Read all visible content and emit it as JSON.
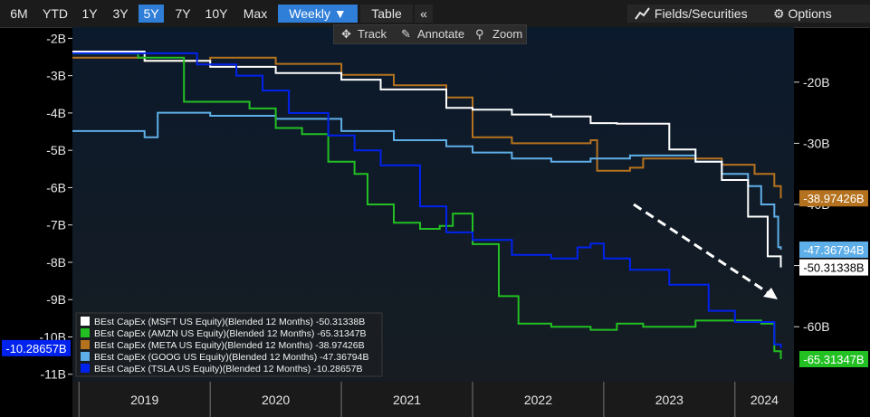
{
  "toolbar": {
    "periods": [
      "6M",
      "YTD",
      "1Y",
      "3Y",
      "5Y",
      "7Y",
      "10Y",
      "Max"
    ],
    "active_period": "5Y",
    "frequency": "Weekly",
    "table_label": "Table",
    "collapse_label": "«",
    "fields_label": "Fields/Securities",
    "options_label": "Options"
  },
  "tools": {
    "track": "Track",
    "annotate": "Annotate",
    "zoom": "Zoom"
  },
  "chart_data": {
    "type": "line",
    "grid": false,
    "left_axis": {
      "ticks": [
        -2,
        -3,
        -4,
        -5,
        -6,
        -7,
        -8,
        -9,
        -10,
        -11
      ],
      "tick_labels": [
        "-2B",
        "-3B",
        "-4B",
        "-5B",
        "-6B",
        "-7B",
        "-8B",
        "-9B",
        "-10B",
        "-11B"
      ],
      "range": [
        -11.2,
        -1.7
      ]
    },
    "right_axis": {
      "ticks": [
        -20,
        -30,
        -40,
        -50,
        -60
      ],
      "tick_labels": [
        "-20B",
        "-30B",
        "-40B",
        "-50B",
        "-60B"
      ],
      "range": [
        -69,
        -11
      ]
    },
    "x_axis": {
      "tick_labels": [
        "2019",
        "2020",
        "2021",
        "2022",
        "2023",
        "2024"
      ],
      "range": [
        2018.95,
        2024.45
      ]
    },
    "legend": {
      "position": "bottom-left"
    },
    "series": [
      {
        "name": "BEst CapEx (MSFT US Equity)(Blended 12 Months)",
        "last": "-50.31338B",
        "axis": "right",
        "color": "#ffffff",
        "points": [
          [
            2018.95,
            -15.0
          ],
          [
            2019.5,
            -16.5
          ],
          [
            2020.0,
            -17.5
          ],
          [
            2020.5,
            -18.5
          ],
          [
            2021.0,
            -19.6
          ],
          [
            2021.3,
            -21.2
          ],
          [
            2021.8,
            -24.2
          ],
          [
            2022.0,
            -24.5
          ],
          [
            2022.3,
            -25.3
          ],
          [
            2022.6,
            -25.6
          ],
          [
            2022.9,
            -26.7
          ],
          [
            2023.1,
            -26.8
          ],
          [
            2023.5,
            -31.0
          ],
          [
            2023.7,
            -33.0
          ],
          [
            2023.9,
            -36.0
          ],
          [
            2024.1,
            -42.0
          ],
          [
            2024.25,
            -48.5
          ],
          [
            2024.35,
            -50.3
          ]
        ]
      },
      {
        "name": "BEst CapEx (AMZN US Equity)(Blended 12 Months)",
        "last": "-65.31347B",
        "axis": "right",
        "color": "#22c022",
        "points": [
          [
            2018.95,
            -15.3
          ],
          [
            2019.45,
            -16.0
          ],
          [
            2019.8,
            -23.2
          ],
          [
            2020.3,
            -24.3
          ],
          [
            2020.5,
            -27.5
          ],
          [
            2020.7,
            -28.5
          ],
          [
            2020.9,
            -33.0
          ],
          [
            2021.1,
            -35.0
          ],
          [
            2021.2,
            -40.0
          ],
          [
            2021.4,
            -43.0
          ],
          [
            2021.6,
            -44.0
          ],
          [
            2021.75,
            -43.5
          ],
          [
            2021.85,
            -41.5
          ],
          [
            2022.0,
            -46.5
          ],
          [
            2022.2,
            -55.0
          ],
          [
            2022.35,
            -59.5
          ],
          [
            2022.6,
            -60.0
          ],
          [
            2022.9,
            -60.5
          ],
          [
            2023.1,
            -59.5
          ],
          [
            2023.3,
            -60.0
          ],
          [
            2023.5,
            -60.0
          ],
          [
            2023.7,
            -59.0
          ],
          [
            2024.0,
            -59.0
          ],
          [
            2024.2,
            -59.5
          ],
          [
            2024.3,
            -64.0
          ],
          [
            2024.35,
            -65.3
          ]
        ]
      },
      {
        "name": "BEst CapEx (META US Equity)(Blended 12 Months)",
        "last": "-38.97426B",
        "axis": "right",
        "color": "#b5721e",
        "points": [
          [
            2018.95,
            -16.0
          ],
          [
            2019.5,
            -16.5
          ],
          [
            2020.0,
            -16.0
          ],
          [
            2020.5,
            -17.0
          ],
          [
            2021.0,
            -18.8
          ],
          [
            2021.4,
            -20.5
          ],
          [
            2021.8,
            -22.5
          ],
          [
            2022.0,
            -29.0
          ],
          [
            2022.3,
            -30.0
          ],
          [
            2022.6,
            -30.0
          ],
          [
            2022.9,
            -29.5
          ],
          [
            2022.95,
            -34.5
          ],
          [
            2023.2,
            -34.0
          ],
          [
            2023.3,
            -32.5
          ],
          [
            2023.6,
            -32.5
          ],
          [
            2023.9,
            -33.5
          ],
          [
            2024.15,
            -35.0
          ],
          [
            2024.3,
            -37.0
          ],
          [
            2024.35,
            -39.0
          ]
        ]
      },
      {
        "name": "BEst CapEx (GOOG US Equity)(Blended 12 Months)",
        "last": "-47.36794B",
        "axis": "right",
        "color": "#5eaee8",
        "points": [
          [
            2018.95,
            -28.0
          ],
          [
            2019.5,
            -29.0
          ],
          [
            2019.6,
            -25.0
          ],
          [
            2020.0,
            -25.5
          ],
          [
            2020.5,
            -26.0
          ],
          [
            2021.0,
            -28.0
          ],
          [
            2021.4,
            -29.5
          ],
          [
            2021.8,
            -30.5
          ],
          [
            2022.0,
            -31.5
          ],
          [
            2022.3,
            -32.5
          ],
          [
            2022.6,
            -33.0
          ],
          [
            2022.9,
            -32.5
          ],
          [
            2023.2,
            -32.0
          ],
          [
            2023.5,
            -32.0
          ],
          [
            2023.7,
            -33.0
          ],
          [
            2023.9,
            -35.0
          ],
          [
            2024.1,
            -37.0
          ],
          [
            2024.2,
            -40.0
          ],
          [
            2024.3,
            -42.0
          ],
          [
            2024.33,
            -47.0
          ],
          [
            2024.35,
            -47.4
          ]
        ]
      },
      {
        "name": "BEst CapEx (TSLA US Equity)(Blended 12 Months)",
        "last": "-10.28657B",
        "axis": "left",
        "color": "#0022ee",
        "points": [
          [
            2018.95,
            -2.4
          ],
          [
            2019.5,
            -2.4
          ],
          [
            2019.9,
            -2.7
          ],
          [
            2020.2,
            -3.0
          ],
          [
            2020.4,
            -3.4
          ],
          [
            2020.6,
            -4.0
          ],
          [
            2020.9,
            -4.6
          ],
          [
            2021.1,
            -5.0
          ],
          [
            2021.3,
            -5.4
          ],
          [
            2021.6,
            -6.5
          ],
          [
            2021.8,
            -7.2
          ],
          [
            2022.0,
            -7.4
          ],
          [
            2022.3,
            -7.8
          ],
          [
            2022.6,
            -7.9
          ],
          [
            2022.8,
            -7.6
          ],
          [
            2022.9,
            -7.5
          ],
          [
            2023.0,
            -7.9
          ],
          [
            2023.2,
            -8.2
          ],
          [
            2023.5,
            -8.6
          ],
          [
            2023.8,
            -9.3
          ],
          [
            2024.0,
            -9.6
          ],
          [
            2024.2,
            -9.6
          ],
          [
            2024.3,
            -10.2
          ],
          [
            2024.35,
            -10.3
          ]
        ]
      }
    ]
  }
}
